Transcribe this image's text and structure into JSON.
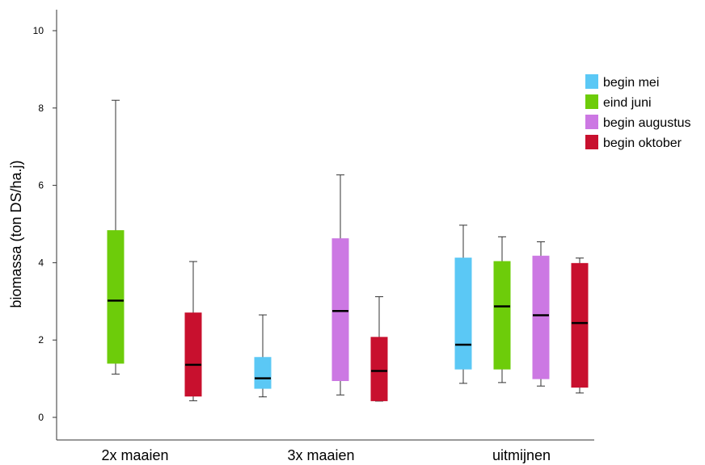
{
  "chart_data": {
    "type": "boxplot",
    "ylabel": "biomassa (ton DS/ha.j)",
    "xlabel": "",
    "ylim": [
      0,
      10
    ],
    "yticks": [
      0,
      2,
      4,
      6,
      8,
      10
    ],
    "categories": [
      "2x maaien",
      "3x maaien",
      "uitmijnen"
    ],
    "legend_position": "right",
    "series": [
      {
        "name": "begin mei",
        "color": "#5bc8f5",
        "boxes": [
          null,
          {
            "min": 0.53,
            "q1": 0.75,
            "median": 1.01,
            "q3": 1.55,
            "max": 2.65
          },
          {
            "min": 0.88,
            "q1": 1.25,
            "median": 1.88,
            "q3": 4.12,
            "max": 4.97
          }
        ]
      },
      {
        "name": "eind juni",
        "color": "#6dcc0a",
        "boxes": [
          {
            "min": 1.12,
            "q1": 1.4,
            "median": 3.02,
            "q3": 4.83,
            "max": 8.2
          },
          null,
          {
            "min": 0.9,
            "q1": 1.25,
            "median": 2.87,
            "q3": 4.03,
            "max": 4.67
          }
        ]
      },
      {
        "name": "begin augustus",
        "color": "#cc78e3",
        "boxes": [
          null,
          {
            "min": 0.58,
            "q1": 0.95,
            "median": 2.75,
            "q3": 4.62,
            "max": 6.27
          },
          {
            "min": 0.81,
            "q1": 1.0,
            "median": 2.64,
            "q3": 4.17,
            "max": 4.54
          }
        ]
      },
      {
        "name": "begin oktober",
        "color": "#c8102e",
        "boxes": [
          {
            "min": 0.43,
            "q1": 0.55,
            "median": 1.36,
            "q3": 2.7,
            "max": 4.03
          },
          {
            "min": 0.42,
            "q1": 0.43,
            "median": 1.2,
            "q3": 2.07,
            "max": 3.12
          },
          {
            "min": 0.63,
            "q1": 0.78,
            "median": 2.44,
            "q3": 3.98,
            "max": 4.12
          }
        ]
      }
    ]
  }
}
